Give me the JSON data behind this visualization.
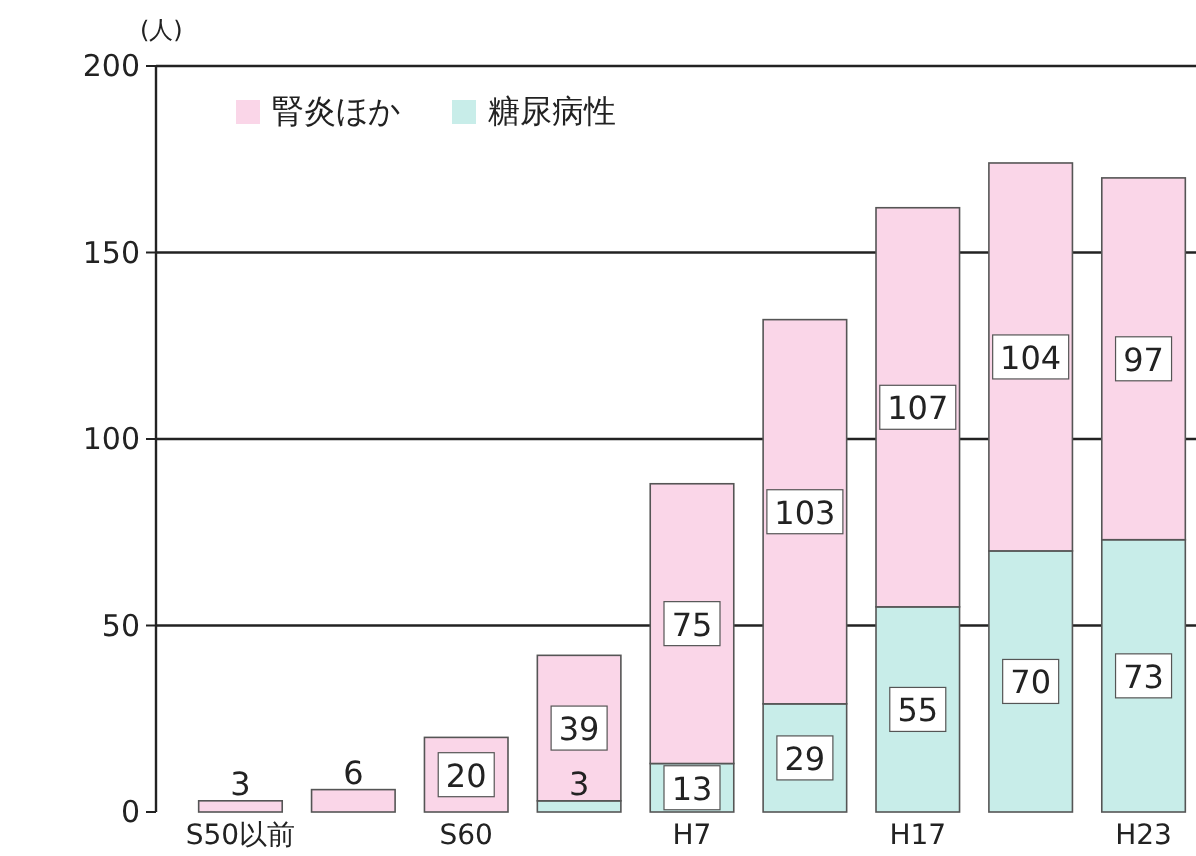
{
  "chart_data": {
    "type": "bar",
    "stacked": true,
    "ylabel": "(人)",
    "categories": [
      "S50以前",
      null,
      "S60",
      null,
      "H7",
      null,
      "H17",
      null,
      "H23"
    ],
    "series": [
      {
        "name": "糖尿病性",
        "color": "#c8ede9",
        "values": [
          null,
          null,
          null,
          3,
          13,
          29,
          55,
          70,
          73
        ]
      },
      {
        "name": "腎炎ほか",
        "color": "#fad6e8",
        "values": [
          3,
          6,
          20,
          39,
          75,
          103,
          107,
          104,
          97
        ]
      }
    ],
    "ylim": [
      0,
      200
    ],
    "yticks": [
      0,
      50,
      100,
      150,
      200
    ],
    "grid": "y",
    "legend": "top left",
    "data_labels": true
  }
}
